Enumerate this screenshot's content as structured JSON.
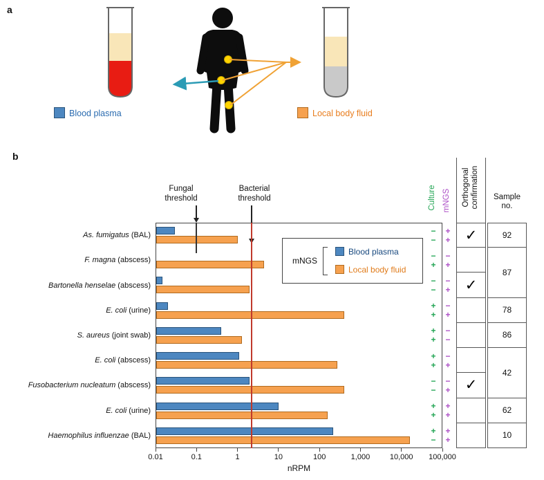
{
  "figure": {
    "panel_a_label": "a",
    "panel_b_label": "b"
  },
  "panel_a": {
    "legend": {
      "blood_plasma_label": "Blood plasma",
      "local_fluid_label": "Local body fluid"
    },
    "colors": {
      "plasma_swatch": "#4d87c0",
      "fluid_swatch": "#f6a14f",
      "plasma_text": "#2b6cb0",
      "fluid_text": "#e87d1e",
      "blood_red": "#e81c13",
      "plasma_cream": "#f9e6b8",
      "fluid_gray": "#c9c9c9",
      "arrow_teal": "#2b9bb5",
      "arrow_orange": "#f0a235",
      "body_marker_yellow": "#ffd400"
    }
  },
  "panel_b": {
    "thresholds": {
      "fungal_label": "Fungal\nthreshold",
      "bacterial_label": "Bacterial\nthreshold"
    },
    "columns": {
      "culture": "Culture",
      "mngs": "mNGS",
      "orthogonal": "Orthogonal\nconfirmation",
      "sample": "Sample no."
    },
    "legend": {
      "group_label": "mNGS",
      "series": [
        "Blood plasma",
        "Local body fluid"
      ],
      "series_text_colors": [
        "#17487e",
        "#e07b1a"
      ]
    }
  },
  "chart_data": {
    "type": "bar",
    "orientation": "horizontal",
    "x_scale": "log",
    "xlabel": "nRPM",
    "x_range": [
      0.01,
      100000
    ],
    "x_ticks": [
      0.01,
      0.1,
      1,
      10,
      100,
      1000,
      10000,
      100000
    ],
    "x_tick_labels": [
      "0.01",
      "0.1",
      "1",
      "10",
      "100",
      "1,000",
      "10,000",
      "100,000"
    ],
    "series": [
      "Blood plasma",
      "Local body fluid"
    ],
    "fungal_threshold": 0.1,
    "bacterial_threshold": 2.2,
    "orthogonal_check_glyph": "✓",
    "colors": {
      "blood_plasma": "#4d87c0",
      "blood_plasma_border": "#2a537a",
      "local_fluid": "#f6a14f",
      "local_fluid_border": "#b06a1e",
      "bacterial_line": "#c0392b",
      "fungal_line": "#333333",
      "culture_green": "#21a453",
      "mngs_purple": "#ac4fc6"
    },
    "rows": [
      {
        "organism": "As. fumigatus",
        "specimen": "(BAL)",
        "blood_plasma_nrpm": 0.03,
        "local_fluid_nrpm": 1.0,
        "culture": [
          "−",
          "−"
        ],
        "mngs": [
          "+",
          "+"
        ],
        "orthogonal_confirmation": true
      },
      {
        "organism": "F. magna",
        "specimen": "(abscess)",
        "blood_plasma_nrpm": null,
        "local_fluid_nrpm": 4.5,
        "culture": [
          "−",
          "+"
        ],
        "mngs": [
          "−",
          "+"
        ],
        "orthogonal_confirmation": false
      },
      {
        "organism": "Bartonella henselae",
        "specimen": "(abscess)",
        "blood_plasma_nrpm": 0.015,
        "local_fluid_nrpm": 2.0,
        "culture": [
          "−",
          "−"
        ],
        "mngs": [
          "−",
          "+"
        ],
        "orthogonal_confirmation": true
      },
      {
        "organism": "E. coli",
        "specimen": "(urine)",
        "blood_plasma_nrpm": 0.02,
        "local_fluid_nrpm": 400,
        "culture": [
          "+",
          "+"
        ],
        "mngs": [
          "−",
          "+"
        ],
        "orthogonal_confirmation": false
      },
      {
        "organism": "S. aureus",
        "specimen": "(joint swab)",
        "blood_plasma_nrpm": 0.4,
        "local_fluid_nrpm": 1.3,
        "culture": [
          "+",
          "+"
        ],
        "mngs": [
          "−",
          "−"
        ],
        "orthogonal_confirmation": false
      },
      {
        "organism": "E. coli",
        "specimen": "(abscess)",
        "blood_plasma_nrpm": 1.1,
        "local_fluid_nrpm": 270,
        "culture": [
          "+",
          "+"
        ],
        "mngs": [
          "−",
          "+"
        ],
        "orthogonal_confirmation": false
      },
      {
        "organism": "Fusobacterium nucleatum",
        "specimen": "(abscess)",
        "blood_plasma_nrpm": 2.0,
        "local_fluid_nrpm": 400,
        "culture": [
          "−",
          "−"
        ],
        "mngs": [
          "−",
          "+"
        ],
        "orthogonal_confirmation": true
      },
      {
        "organism": "E. coli",
        "specimen": "(urine)",
        "blood_plasma_nrpm": 10,
        "local_fluid_nrpm": 160,
        "culture": [
          "+",
          "+"
        ],
        "mngs": [
          "+",
          "+"
        ],
        "orthogonal_confirmation": false
      },
      {
        "organism": "Haemophilus influenzae",
        "specimen": "(BAL)",
        "blood_plasma_nrpm": 215,
        "local_fluid_nrpm": 16000,
        "culture": [
          "+",
          "−"
        ],
        "mngs": [
          "+",
          "+"
        ],
        "orthogonal_confirmation": false
      }
    ],
    "sample_groups": [
      {
        "start_row": 0,
        "end_row": 0,
        "value": "92"
      },
      {
        "start_row": 1,
        "end_row": 2,
        "value": "87"
      },
      {
        "start_row": 3,
        "end_row": 3,
        "value": "78"
      },
      {
        "start_row": 4,
        "end_row": 4,
        "value": "86"
      },
      {
        "start_row": 5,
        "end_row": 6,
        "value": "42"
      },
      {
        "start_row": 7,
        "end_row": 7,
        "value": "62"
      },
      {
        "start_row": 8,
        "end_row": 8,
        "value": "10"
      }
    ]
  }
}
